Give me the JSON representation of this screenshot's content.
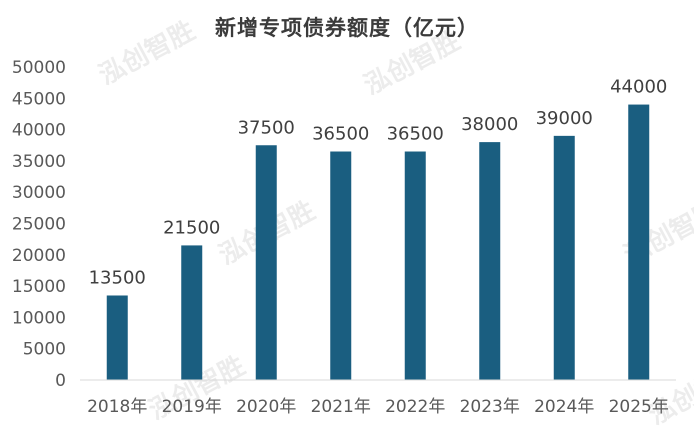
{
  "chart_data": {
    "type": "bar",
    "title": "新增专项债券额度（亿元）",
    "categories": [
      "2018年",
      "2019年",
      "2020年",
      "2021年",
      "2022年",
      "2023年",
      "2024年",
      "2025年"
    ],
    "values": [
      13500,
      21500,
      37500,
      36500,
      36500,
      38000,
      39000,
      44000
    ],
    "data_labels": [
      "13500",
      "21500",
      "37500",
      "36500",
      "36500",
      "38000",
      "39000",
      "44000"
    ],
    "yticks": [
      "0",
      "5000",
      "10000",
      "15000",
      "20000",
      "25000",
      "30000",
      "35000",
      "40000",
      "45000",
      "50000"
    ],
    "ylim": [
      0,
      50000
    ],
    "xlabel": "",
    "ylabel": "",
    "grid": false,
    "legend": "none",
    "bar_color": "#1a5e80",
    "watermark": "泓创智胜"
  }
}
